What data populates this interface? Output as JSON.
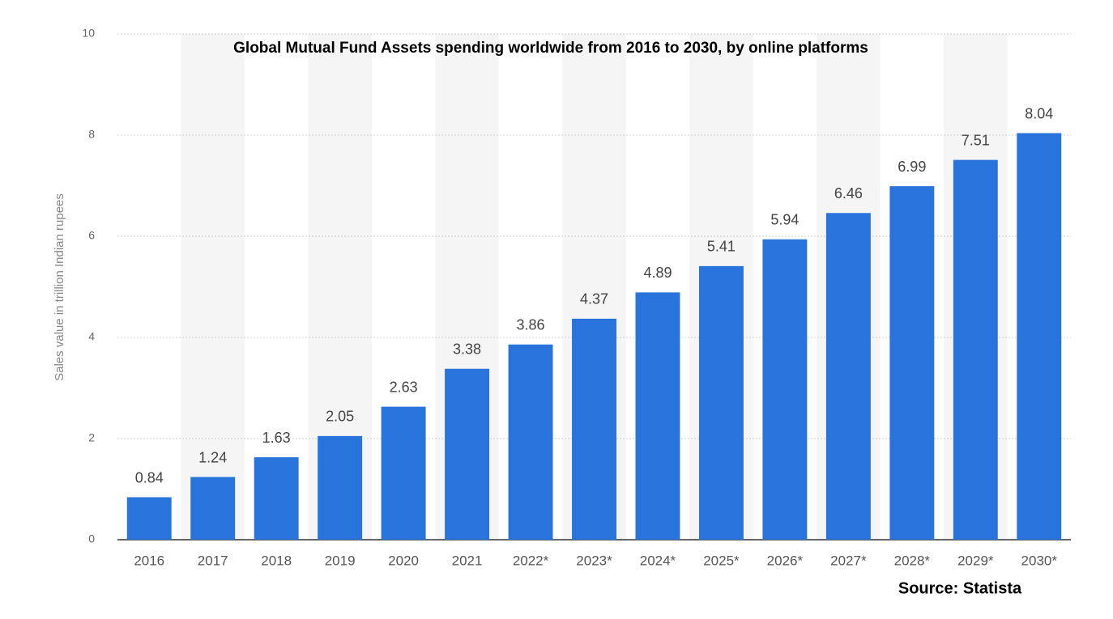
{
  "chart_data": {
    "type": "bar",
    "title": "Global Mutual Fund Assets spending worldwide from 2016 to 2030, by online platforms",
    "y_label": "Sales value in trillion Indian rupees",
    "source": "Source: Statista",
    "categories": [
      "2016",
      "2017",
      "2018",
      "2019",
      "2020",
      "2021",
      "2022*",
      "2023*",
      "2024*",
      "2025*",
      "2026*",
      "2027*",
      "2028*",
      "2029*",
      "2030*"
    ],
    "values": [
      0.84,
      1.24,
      1.63,
      2.05,
      2.63,
      3.38,
      3.86,
      4.37,
      4.89,
      5.41,
      5.94,
      6.46,
      6.99,
      7.51,
      8.04
    ],
    "color": "#2874dc",
    "ylim": [
      0,
      10
    ],
    "yticks": [
      0,
      2,
      4,
      6,
      8,
      10
    ],
    "grid": true
  }
}
